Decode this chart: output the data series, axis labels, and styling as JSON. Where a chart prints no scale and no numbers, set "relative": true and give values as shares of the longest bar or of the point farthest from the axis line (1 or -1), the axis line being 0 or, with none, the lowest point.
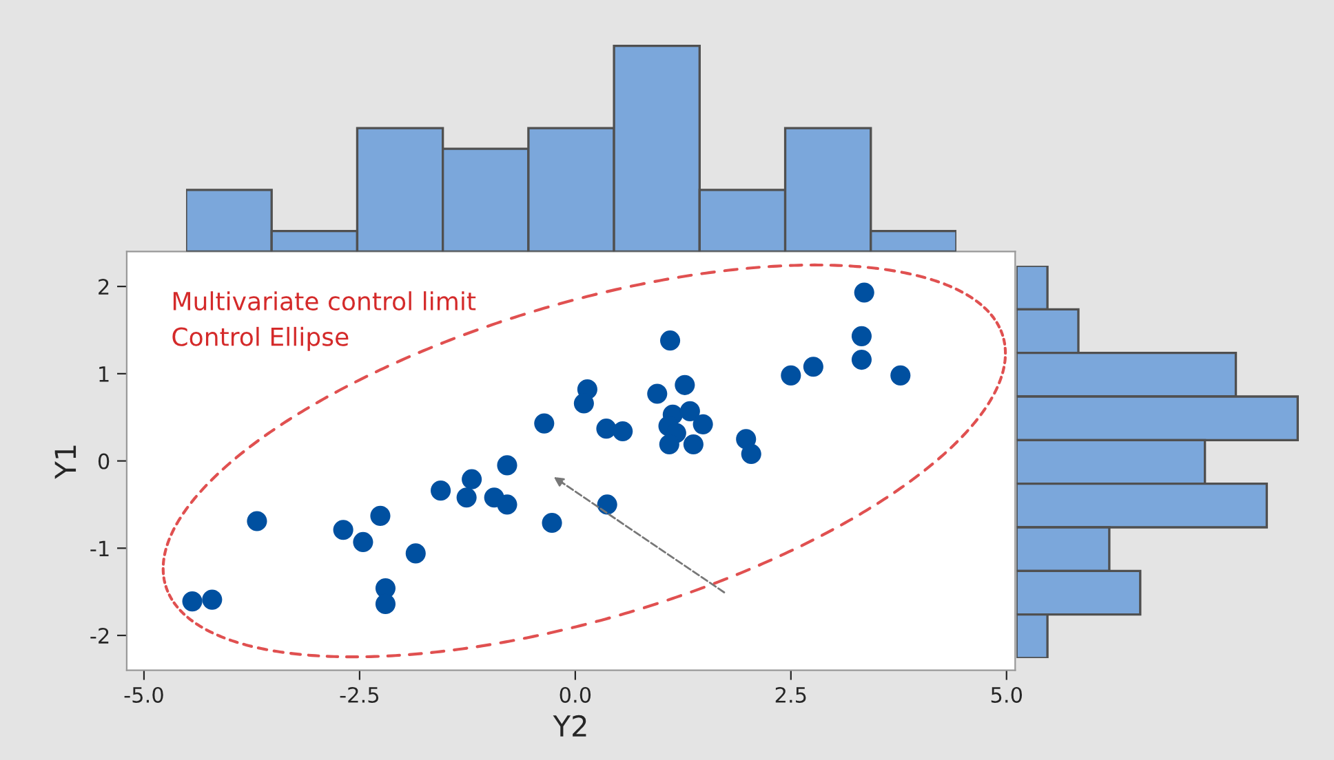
{
  "chart_data": [
    {
      "type": "scatter",
      "xlabel": "Y2",
      "ylabel": "Y1",
      "marker": "circle",
      "annotations": [
        "Multivariate control limit",
        "Control Ellipse"
      ],
      "series": [
        {
          "type": "scatter",
          "color": "#0050a0",
          "x": [
            -0.36,
            -0.79,
            -1.2,
            -1.56,
            -1.26,
            -0.94,
            -0.79,
            -0.27,
            -3.69,
            -2.69,
            -2.26,
            -2.46,
            -1.85,
            -2.2,
            -2.2,
            -4.44,
            -4.21,
            3.35,
            3.32,
            3.32,
            3.77,
            2.76,
            2.5,
            1.1,
            1.27,
            0.95,
            0.14,
            0.1,
            0.36,
            0.55,
            1.13,
            1.33,
            1.48,
            1.08,
            1.17,
            1.09,
            1.37,
            1.98,
            2.04,
            0.37
          ],
          "values": [
            0.43,
            -0.05,
            -0.21,
            -0.34,
            -0.42,
            -0.42,
            -0.5,
            -0.71,
            -0.69,
            -0.79,
            -0.63,
            -0.93,
            -1.06,
            -1.46,
            -1.64,
            -1.61,
            -1.59,
            1.93,
            1.43,
            1.16,
            0.98,
            1.08,
            0.98,
            1.38,
            0.87,
            0.77,
            0.82,
            0.66,
            0.37,
            0.34,
            0.53,
            0.57,
            0.42,
            0.4,
            0.32,
            0.19,
            0.19,
            0.25,
            0.08,
            -0.5
          ]
        }
      ],
      "xlim": [
        -5.2,
        5.1
      ],
      "ylim": [
        -2.4,
        2.4
      ],
      "xticks": [
        {
          "value": -5,
          "label": "-5.0"
        },
        {
          "value": -2.5,
          "label": "-2.5"
        },
        {
          "value": 0,
          "label": "0.0"
        },
        {
          "value": 2.5,
          "label": "2.5"
        },
        {
          "value": 5,
          "label": "5.0"
        }
      ],
      "yticks": [
        -2,
        -1,
        0,
        1,
        2
      ]
    },
    {
      "type": "bar",
      "relative": true,
      "color": "#7ba7db",
      "categories": [
        null,
        null,
        null,
        null,
        null,
        null,
        null,
        null,
        null
      ],
      "values": [
        0.3,
        0.1,
        0.6,
        0.5,
        0.6,
        1,
        0.3,
        0.6,
        0.1
      ]
    },
    {
      "type": "bar",
      "relative": true,
      "orientation": "horizontal",
      "color": "#7ba7db",
      "categories": [
        null,
        null,
        null,
        null,
        null,
        null,
        null,
        null,
        null
      ],
      "values": [
        0.11,
        0.22,
        0.78,
        1,
        0.67,
        0.89,
        0.33,
        0.44,
        0.11
      ]
    }
  ]
}
